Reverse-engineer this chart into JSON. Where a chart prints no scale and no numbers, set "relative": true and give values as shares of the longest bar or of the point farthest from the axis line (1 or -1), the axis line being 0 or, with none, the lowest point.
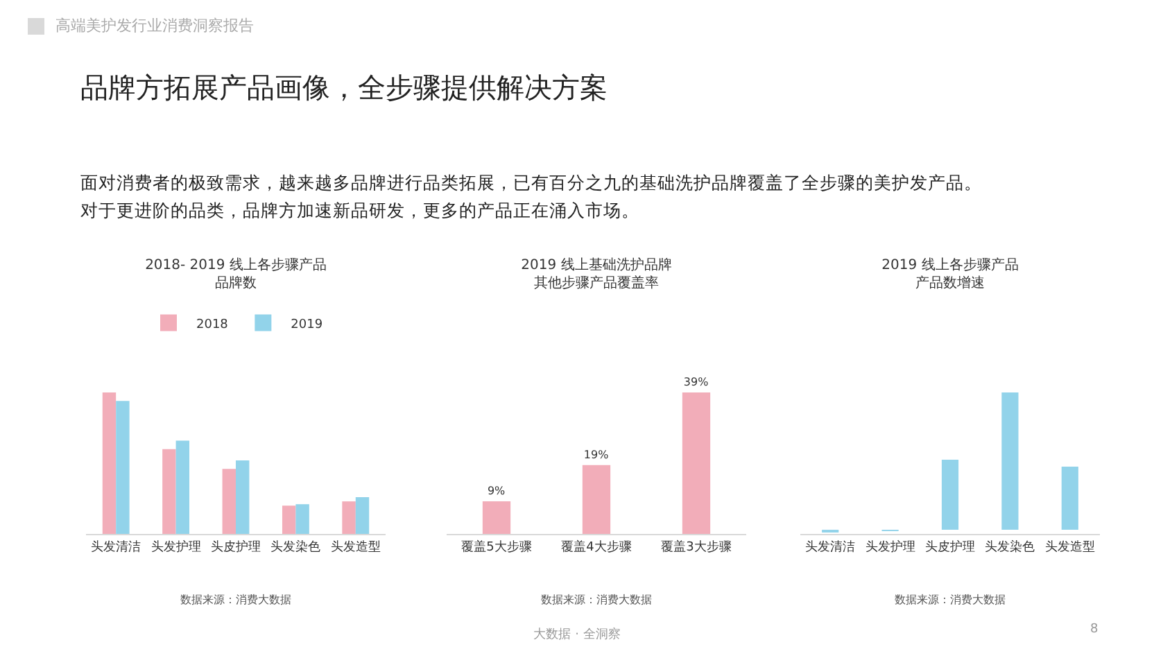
{
  "chart_data": [
    {
      "type": "bar",
      "title": "2018- 2019 线上各步骤产品品牌数",
      "relative": true,
      "legend": "top",
      "grid": false,
      "categories": [
        "头发清洁",
        "头发护理",
        "头皮护理",
        "头发染色",
        "头发造型"
      ],
      "series": [
        {
          "name": "2018",
          "color": "#f2adb9",
          "values": [
            1,
            0.6,
            0.46,
            0.2,
            0.23
          ]
        },
        {
          "name": "2019",
          "color": "#92d3ea",
          "values": [
            0.94,
            0.66,
            0.52,
            0.21,
            0.26
          ]
        }
      ],
      "annotations": [
        "数据来源：消费大数据",
        "高端美护发行业消费洞察报告",
        "品牌方拓展产品画像，全步骤提供解决方案",
        "面对消费者的极致需求，越来越多品牌进行品类拓展，已有百分之九的基础洗护品牌覆盖了全步骤的美护发产品。对于更进阶的品类，品牌方加速新品研发，更多的产品正在涌入市场。",
        "大数据 · 全洞察",
        "8"
      ]
    },
    {
      "type": "bar",
      "title": "2019 线上基础洗护品牌其他步骤产品覆盖率",
      "value_labels": [
        "9%",
        "19%",
        "39%"
      ],
      "grid": false,
      "categories": [
        "覆盖5大步骤",
        "覆盖4大步骤",
        "覆盖3大步骤"
      ],
      "values": [
        9,
        19,
        39
      ],
      "color": "#f2adb9",
      "annotations": [
        "数据来源：消费大数据"
      ]
    },
    {
      "type": "bar",
      "title": "2019 线上各步骤产品产品数增速",
      "relative": true,
      "grid": false,
      "categories": [
        "头发清洁",
        "头发护理",
        "头皮护理",
        "头发染色",
        "头发造型"
      ],
      "values": [
        -0.02,
        -0.01,
        0.51,
        1,
        0.46
      ],
      "color": "#92d3ea",
      "annotations": [
        "数据来源：消费大数据"
      ]
    }
  ]
}
